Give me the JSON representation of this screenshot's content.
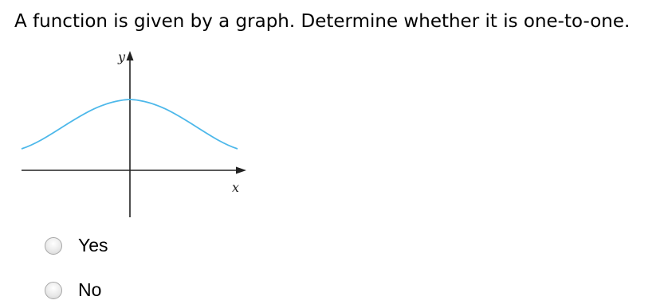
{
  "question": "A function is given by a graph. Determine whether it is one-to-one.",
  "graph": {
    "y_label": "y",
    "x_label": "x"
  },
  "options": [
    "Yes",
    "No"
  ]
}
